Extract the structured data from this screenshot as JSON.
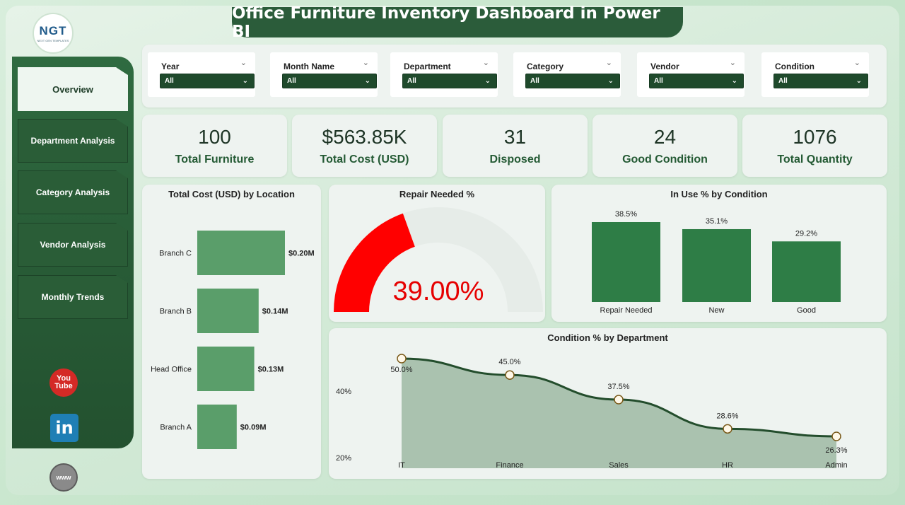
{
  "header": {
    "title": "Office Furniture Inventory Dashboard in Power BI",
    "logo_text": "NGT",
    "logo_subtext": "NEXT GEN TEMPLATES"
  },
  "sidebar": {
    "items": [
      {
        "label": "Overview",
        "active": true
      },
      {
        "label": "Department Analysis",
        "active": false
      },
      {
        "label": "Category Analysis",
        "active": false
      },
      {
        "label": "Vendor Analysis",
        "active": false
      },
      {
        "label": "Monthly Trends",
        "active": false
      }
    ],
    "social": {
      "youtube": "You\nTube",
      "linkedin": "in",
      "website": "www"
    }
  },
  "filters": [
    {
      "label": "Year",
      "value": "All"
    },
    {
      "label": "Month Name",
      "value": "All"
    },
    {
      "label": "Department",
      "value": "All"
    },
    {
      "label": "Category",
      "value": "All"
    },
    {
      "label": "Vendor",
      "value": "All"
    },
    {
      "label": "Condition",
      "value": "All"
    }
  ],
  "kpis": [
    {
      "value": "100",
      "label": "Total Furniture"
    },
    {
      "value": "$563.85K",
      "label": "Total Cost (USD)"
    },
    {
      "value": "31",
      "label": "Disposed"
    },
    {
      "value": "24",
      "label": "Good Condition"
    },
    {
      "value": "1076",
      "label": "Total Quantity"
    }
  ],
  "colors": {
    "primary": "#2b5c3a",
    "bar": "#5a9e6a",
    "bar_dark": "#2e7d46",
    "gauge": "#ff0000",
    "line": "#234d2c",
    "area": "#9db8a3"
  },
  "chart_data": [
    {
      "type": "bar",
      "orientation": "horizontal",
      "title": "Total Cost (USD) by Location",
      "categories": [
        "Branch C",
        "Branch B",
        "Head Office",
        "Branch A"
      ],
      "values": [
        0.2,
        0.14,
        0.13,
        0.09
      ],
      "data_labels": [
        "$0.20M",
        "$0.14M",
        "$0.13M",
        "$0.09M"
      ],
      "xlim": [
        0,
        0.25
      ]
    },
    {
      "type": "gauge",
      "title": "Repair Needed %",
      "value": 39.0,
      "max": 100,
      "display": "39.00%"
    },
    {
      "type": "bar",
      "title": "In Use % by Condition",
      "categories": [
        "Repair Needed",
        "New",
        "Good"
      ],
      "values": [
        38.5,
        35.1,
        29.2
      ],
      "data_labels": [
        "38.5%",
        "35.1%",
        "29.2%"
      ],
      "ylim": [
        0,
        45
      ]
    },
    {
      "type": "area",
      "title": "Condition % by Department",
      "categories": [
        "IT",
        "Finance",
        "Sales",
        "HR",
        "Admin"
      ],
      "values": [
        50.0,
        45.0,
        37.5,
        28.6,
        26.3
      ],
      "data_labels": [
        "50.0%",
        "45.0%",
        "37.5%",
        "28.6%",
        "26.3%"
      ],
      "y_ticks": [
        "40%",
        "20%"
      ],
      "ylim": [
        20,
        50
      ]
    }
  ]
}
